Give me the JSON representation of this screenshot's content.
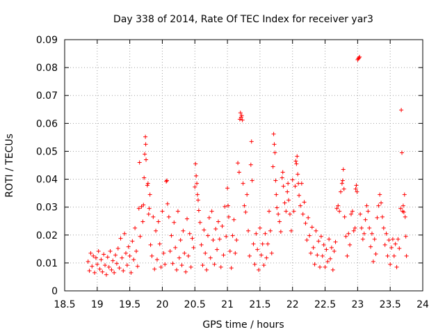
{
  "chart_data": {
    "type": "scatter",
    "title": "Day 338 of 2014, Rate Of TEC Index for receiver yar3",
    "xlabel": "GPS time / hours",
    "ylabel": "ROTI / TECUs",
    "xlim": [
      18.5,
      24
    ],
    "ylim": [
      0,
      0.09
    ],
    "x_ticks": [
      "18.5",
      "19",
      "19.5",
      "20",
      "20.5",
      "21",
      "21.5",
      "22",
      "22.5",
      "23",
      "23.5",
      "24"
    ],
    "y_ticks": [
      "0",
      "0.01",
      "0.02",
      "0.03",
      "0.04",
      "0.05",
      "0.06",
      "0.07",
      "0.08",
      "0.09"
    ],
    "grid": true,
    "marker": "+",
    "color": "#ff0000",
    "series": [
      {
        "name": "yar3",
        "points": [
          [
            18.86,
            0.0105
          ],
          [
            18.88,
            0.0072
          ],
          [
            18.9,
            0.0135
          ],
          [
            18.92,
            0.0088
          ],
          [
            18.94,
            0.0125
          ],
          [
            18.96,
            0.0065
          ],
          [
            18.98,
            0.0118
          ],
          [
            19.0,
            0.0095
          ],
          [
            19.02,
            0.0142
          ],
          [
            19.04,
            0.0078
          ],
          [
            19.06,
            0.0112
          ],
          [
            19.08,
            0.0068
          ],
          [
            19.1,
            0.0131
          ],
          [
            19.12,
            0.0092
          ],
          [
            19.14,
            0.0058
          ],
          [
            19.16,
            0.0121
          ],
          [
            19.18,
            0.0085
          ],
          [
            19.2,
            0.0142
          ],
          [
            19.22,
            0.0075
          ],
          [
            19.24,
            0.0108
          ],
          [
            19.26,
            0.0065
          ],
          [
            19.28,
            0.0128
          ],
          [
            19.3,
            0.0098
          ],
          [
            19.32,
            0.0152
          ],
          [
            19.34,
            0.0082
          ],
          [
            19.36,
            0.0188
          ],
          [
            19.38,
            0.0118
          ],
          [
            19.4,
            0.0072
          ],
          [
            19.42,
            0.0205
          ],
          [
            19.44,
            0.0135
          ],
          [
            19.46,
            0.0092
          ],
          [
            19.48,
            0.0158
          ],
          [
            19.5,
            0.0125
          ],
          [
            19.52,
            0.0065
          ],
          [
            19.54,
            0.0178
          ],
          [
            19.56,
            0.0112
          ],
          [
            19.58,
            0.0225
          ],
          [
            19.6,
            0.0142
          ],
          [
            19.62,
            0.0088
          ],
          [
            19.64,
            0.0295
          ],
          [
            19.65,
            0.046
          ],
          [
            19.66,
            0.0195
          ],
          [
            19.68,
            0.0302
          ],
          [
            19.7,
            0.0248
          ],
          [
            19.71,
            0.0308
          ],
          [
            19.72,
            0.0405
          ],
          [
            19.73,
            0.049
          ],
          [
            19.74,
            0.0552
          ],
          [
            19.745,
            0.0525
          ],
          [
            19.75,
            0.047
          ],
          [
            19.77,
            0.0378
          ],
          [
            19.78,
            0.0385
          ],
          [
            19.79,
            0.0275
          ],
          [
            19.8,
            0.0295
          ],
          [
            19.81,
            0.0345
          ],
          [
            19.82,
            0.0165
          ],
          [
            19.84,
            0.0125
          ],
          [
            19.86,
            0.0265
          ],
          [
            19.88,
            0.0078
          ],
          [
            19.9,
            0.0215
          ],
          [
            19.92,
            0.0112
          ],
          [
            19.94,
            0.0248
          ],
          [
            19.96,
            0.0168
          ],
          [
            19.98,
            0.0085
          ],
          [
            20.0,
            0.0285
          ],
          [
            20.02,
            0.0135
          ],
          [
            20.04,
            0.0095
          ],
          [
            20.06,
            0.0392
          ],
          [
            20.07,
            0.0395
          ],
          [
            20.08,
            0.0312
          ],
          [
            20.1,
            0.0265
          ],
          [
            20.12,
            0.0142
          ],
          [
            20.14,
            0.0198
          ],
          [
            20.16,
            0.0098
          ],
          [
            20.18,
            0.0245
          ],
          [
            20.2,
            0.0155
          ],
          [
            20.22,
            0.0075
          ],
          [
            20.24,
            0.0285
          ],
          [
            20.26,
            0.0118
          ],
          [
            20.28,
            0.0182
          ],
          [
            20.3,
            0.0092
          ],
          [
            20.32,
            0.0215
          ],
          [
            20.34,
            0.0135
          ],
          [
            20.36,
            0.0068
          ],
          [
            20.38,
            0.0258
          ],
          [
            20.4,
            0.0125
          ],
          [
            20.42,
            0.0205
          ],
          [
            20.44,
            0.0085
          ],
          [
            20.46,
            0.0188
          ],
          [
            20.48,
            0.0155
          ],
          [
            20.5,
            0.0372
          ],
          [
            20.51,
            0.0455
          ],
          [
            20.52,
            0.0412
          ],
          [
            20.53,
            0.0385
          ],
          [
            20.54,
            0.0345
          ],
          [
            20.55,
            0.0325
          ],
          [
            20.56,
            0.0288
          ],
          [
            20.58,
            0.0245
          ],
          [
            20.6,
            0.0165
          ],
          [
            20.62,
            0.0092
          ],
          [
            20.64,
            0.0218
          ],
          [
            20.66,
            0.0135
          ],
          [
            20.68,
            0.0075
          ],
          [
            20.7,
            0.0198
          ],
          [
            20.72,
            0.0262
          ],
          [
            20.74,
            0.0118
          ],
          [
            20.76,
            0.0285
          ],
          [
            20.78,
            0.0182
          ],
          [
            20.8,
            0.0095
          ],
          [
            20.82,
            0.0222
          ],
          [
            20.84,
            0.0148
          ],
          [
            20.86,
            0.0248
          ],
          [
            20.88,
            0.0185
          ],
          [
            20.9,
            0.0085
          ],
          [
            20.92,
            0.0232
          ],
          [
            20.94,
            0.0128
          ],
          [
            20.96,
            0.0302
          ],
          [
            20.98,
            0.0195
          ],
          [
            21.0,
            0.0368
          ],
          [
            21.01,
            0.0305
          ],
          [
            21.02,
            0.0265
          ],
          [
            21.04,
            0.0142
          ],
          [
            21.06,
            0.0082
          ],
          [
            21.08,
            0.0198
          ],
          [
            21.1,
            0.0255
          ],
          [
            21.12,
            0.0135
          ],
          [
            21.14,
            0.0182
          ],
          [
            21.16,
            0.0458
          ],
          [
            21.18,
            0.0425
          ],
          [
            21.19,
            0.0615
          ],
          [
            21.2,
            0.0638
          ],
          [
            21.21,
            0.0622
          ],
          [
            21.22,
            0.0628
          ],
          [
            21.23,
            0.0612
          ],
          [
            21.24,
            0.0385
          ],
          [
            21.26,
            0.0305
          ],
          [
            21.28,
            0.0282
          ],
          [
            21.3,
            0.0345
          ],
          [
            21.32,
            0.0215
          ],
          [
            21.34,
            0.0125
          ],
          [
            21.36,
            0.0452
          ],
          [
            21.37,
            0.0535
          ],
          [
            21.38,
            0.0395
          ],
          [
            21.4,
            0.0168
          ],
          [
            21.42,
            0.0095
          ],
          [
            21.44,
            0.0205
          ],
          [
            21.46,
            0.0148
          ],
          [
            21.48,
            0.0075
          ],
          [
            21.5,
            0.0225
          ],
          [
            21.52,
            0.0128
          ],
          [
            21.54,
            0.0168
          ],
          [
            21.56,
            0.0092
          ],
          [
            21.58,
            0.0205
          ],
          [
            21.6,
            0.0118
          ],
          [
            21.62,
            0.0168
          ],
          [
            21.64,
            0.0285
          ],
          [
            21.66,
            0.0215
          ],
          [
            21.68,
            0.0135
          ],
          [
            21.7,
            0.0445
          ],
          [
            21.71,
            0.0562
          ],
          [
            21.72,
            0.0525
          ],
          [
            21.73,
            0.0495
          ],
          [
            21.74,
            0.0395
          ],
          [
            21.75,
            0.0345
          ],
          [
            21.76,
            0.0298
          ],
          [
            21.78,
            0.0275
          ],
          [
            21.8,
            0.0248
          ],
          [
            21.82,
            0.0212
          ],
          [
            21.84,
            0.0405
          ],
          [
            21.85,
            0.0425
          ],
          [
            21.86,
            0.0375
          ],
          [
            21.88,
            0.0315
          ],
          [
            21.9,
            0.0285
          ],
          [
            21.92,
            0.0355
          ],
          [
            21.93,
            0.0385
          ],
          [
            21.94,
            0.0325
          ],
          [
            21.96,
            0.0275
          ],
          [
            21.98,
            0.0215
          ],
          [
            22.0,
            0.0398
          ],
          [
            22.02,
            0.0285
          ],
          [
            22.04,
            0.0375
          ],
          [
            22.05,
            0.0465
          ],
          [
            22.06,
            0.0455
          ],
          [
            22.07,
            0.0482
          ],
          [
            22.08,
            0.0418
          ],
          [
            22.09,
            0.0385
          ],
          [
            22.1,
            0.0342
          ],
          [
            22.12,
            0.0305
          ],
          [
            22.14,
            0.0385
          ],
          [
            22.16,
            0.0275
          ],
          [
            22.18,
            0.0318
          ],
          [
            22.2,
            0.0242
          ],
          [
            22.22,
            0.0182
          ],
          [
            22.24,
            0.0262
          ],
          [
            22.26,
            0.0198
          ],
          [
            22.28,
            0.0135
          ],
          [
            22.3,
            0.0228
          ],
          [
            22.32,
            0.0155
          ],
          [
            22.34,
            0.0095
          ],
          [
            22.36,
            0.0215
          ],
          [
            22.38,
            0.0128
          ],
          [
            22.4,
            0.0178
          ],
          [
            22.42,
            0.0085
          ],
          [
            22.44,
            0.0195
          ],
          [
            22.46,
            0.0125
          ],
          [
            22.48,
            0.0165
          ],
          [
            22.5,
            0.0085
          ],
          [
            22.52,
            0.0148
          ],
          [
            22.54,
            0.0105
          ],
          [
            22.56,
            0.0185
          ],
          [
            22.58,
            0.0115
          ],
          [
            22.6,
            0.0155
          ],
          [
            22.62,
            0.0075
          ],
          [
            22.64,
            0.0142
          ],
          [
            22.66,
            0.0175
          ],
          [
            22.68,
            0.0295
          ],
          [
            22.7,
            0.0305
          ],
          [
            22.72,
            0.0285
          ],
          [
            22.74,
            0.0355
          ],
          [
            22.76,
            0.0385
          ],
          [
            22.77,
            0.0395
          ],
          [
            22.78,
            0.0435
          ],
          [
            22.79,
            0.0365
          ],
          [
            22.8,
            0.0265
          ],
          [
            22.82,
            0.0195
          ],
          [
            22.84,
            0.0125
          ],
          [
            22.86,
            0.0205
          ],
          [
            22.88,
            0.0165
          ],
          [
            22.9,
            0.0275
          ],
          [
            22.92,
            0.0285
          ],
          [
            22.94,
            0.0215
          ],
          [
            22.96,
            0.0225
          ],
          [
            22.97,
            0.0365
          ],
          [
            22.98,
            0.0378
          ],
          [
            22.99,
            0.0355
          ],
          [
            23.0,
            0.0828
          ],
          [
            23.01,
            0.0832
          ],
          [
            23.02,
            0.0835
          ],
          [
            23.03,
            0.0838
          ],
          [
            23.04,
            0.0275
          ],
          [
            23.06,
            0.0225
          ],
          [
            23.08,
            0.0185
          ],
          [
            23.1,
            0.0205
          ],
          [
            23.12,
            0.0255
          ],
          [
            23.14,
            0.0305
          ],
          [
            23.16,
            0.0285
          ],
          [
            23.18,
            0.0225
          ],
          [
            23.2,
            0.0158
          ],
          [
            23.22,
            0.0205
          ],
          [
            23.24,
            0.0105
          ],
          [
            23.26,
            0.0185
          ],
          [
            23.28,
            0.0132
          ],
          [
            23.3,
            0.0262
          ],
          [
            23.32,
            0.0305
          ],
          [
            23.34,
            0.0345
          ],
          [
            23.36,
            0.0315
          ],
          [
            23.38,
            0.0265
          ],
          [
            23.4,
            0.0225
          ],
          [
            23.42,
            0.0165
          ],
          [
            23.44,
            0.0205
          ],
          [
            23.46,
            0.0125
          ],
          [
            23.48,
            0.0182
          ],
          [
            23.5,
            0.0095
          ],
          [
            23.52,
            0.0155
          ],
          [
            23.54,
            0.0185
          ],
          [
            23.56,
            0.0125
          ],
          [
            23.58,
            0.0168
          ],
          [
            23.6,
            0.0085
          ],
          [
            23.62,
            0.0185
          ],
          [
            23.64,
            0.0152
          ],
          [
            23.66,
            0.0295
          ],
          [
            23.67,
            0.0648
          ],
          [
            23.68,
            0.0495
          ],
          [
            23.69,
            0.0285
          ],
          [
            23.7,
            0.0305
          ],
          [
            23.71,
            0.0282
          ],
          [
            23.72,
            0.0345
          ],
          [
            23.73,
            0.0265
          ],
          [
            23.74,
            0.0195
          ],
          [
            23.75,
            0.0125
          ]
        ]
      }
    ]
  }
}
